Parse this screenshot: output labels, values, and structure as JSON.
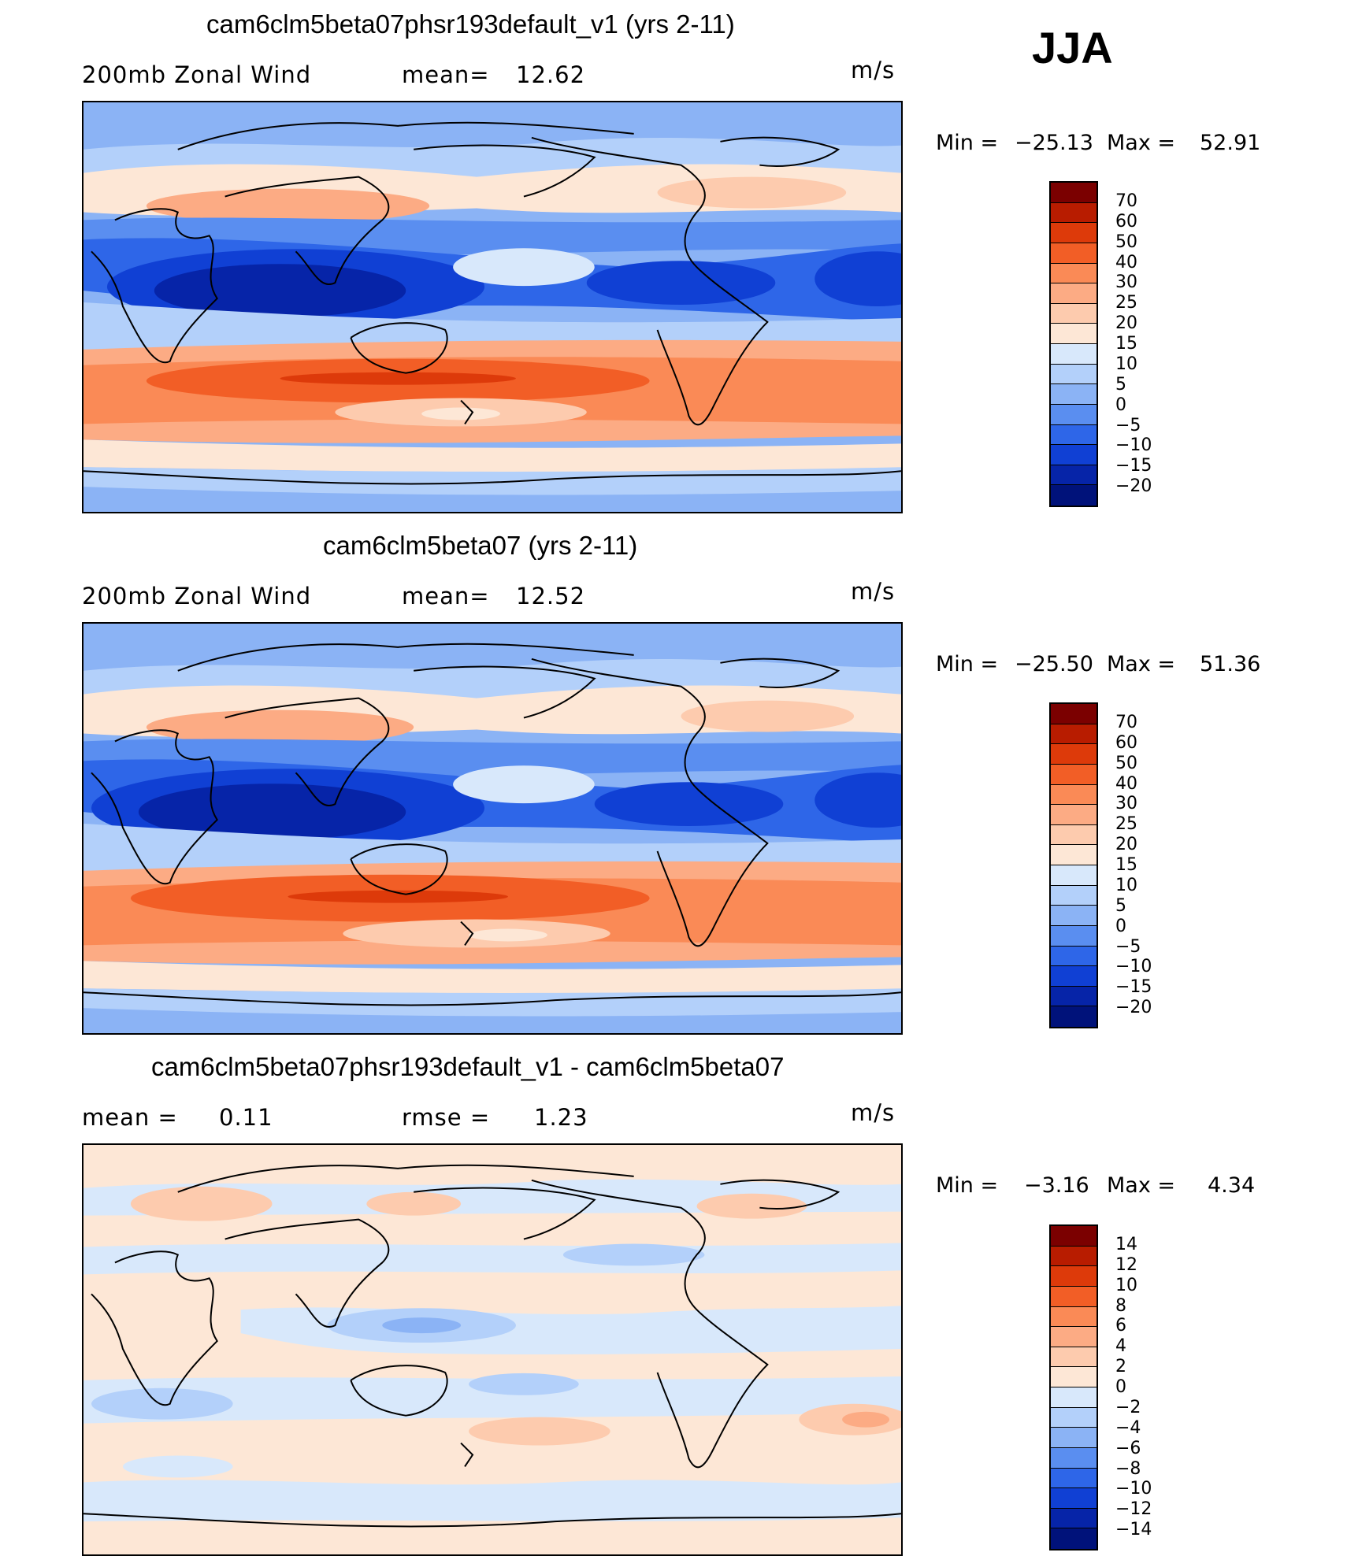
{
  "season": "JJA",
  "panels": [
    {
      "title": "cam6clm5beta07phsr193default_v1 (yrs 2-11)",
      "left_label": "200mb Zonal Wind",
      "mid_label": "mean=",
      "mid_value": "12.62",
      "units": "m/s",
      "min_label": "Min =",
      "min_value": "−25.13",
      "max_label": "Max =",
      "max_value": "52.91",
      "colorbar_labels": [
        "70",
        "60",
        "50",
        "40",
        "30",
        "25",
        "20",
        "15",
        "10",
        "5",
        "0",
        "−5",
        "−10",
        "−15",
        "−20"
      ]
    },
    {
      "title": "cam6clm5beta07 (yrs 2-11)",
      "left_label": "200mb Zonal Wind",
      "mid_label": "mean=",
      "mid_value": "12.52",
      "units": "m/s",
      "min_label": "Min =",
      "min_value": "−25.50",
      "max_label": "Max =",
      "max_value": "51.36",
      "colorbar_labels": [
        "70",
        "60",
        "50",
        "40",
        "30",
        "25",
        "20",
        "15",
        "10",
        "5",
        "0",
        "−5",
        "−10",
        "−15",
        "−20"
      ]
    },
    {
      "title": "cam6clm5beta07phsr193default_v1 - cam6clm5beta07",
      "left_label": "mean =",
      "left_value": "0.11",
      "mid_label": "rmse =",
      "mid_value": "1.23",
      "units": "m/s",
      "min_label": "Min =",
      "min_value": "−3.16",
      "max_label": "Max =",
      "max_value": "4.34",
      "colorbar_labels": [
        "14",
        "12",
        "10",
        "8",
        "6",
        "4",
        "2",
        "0",
        "−2",
        "−4",
        "−6",
        "−8",
        "−10",
        "−12",
        "−14"
      ]
    }
  ],
  "colors": {
    "field_scale": [
      "#7b0000",
      "#b81c00",
      "#dd3a0a",
      "#f25e26",
      "#fa8a56",
      "#fcab84",
      "#fdcbae",
      "#fde7d6",
      "#d8e8fb",
      "#b3d0fa",
      "#8bb3f5",
      "#5a8ef0",
      "#2e66e8",
      "#1040d4",
      "#0624a8",
      "#00127a"
    ],
    "diff_scale": [
      "#7b0000",
      "#b81c00",
      "#dd3a0a",
      "#f25e26",
      "#fa8a56",
      "#fcab84",
      "#fdcbae",
      "#fde7d6",
      "#d8e8fb",
      "#b3d0fa",
      "#8bb3f5",
      "#5a8ef0",
      "#2e66e8",
      "#1040d4",
      "#0624a8",
      "#00127a"
    ]
  }
}
